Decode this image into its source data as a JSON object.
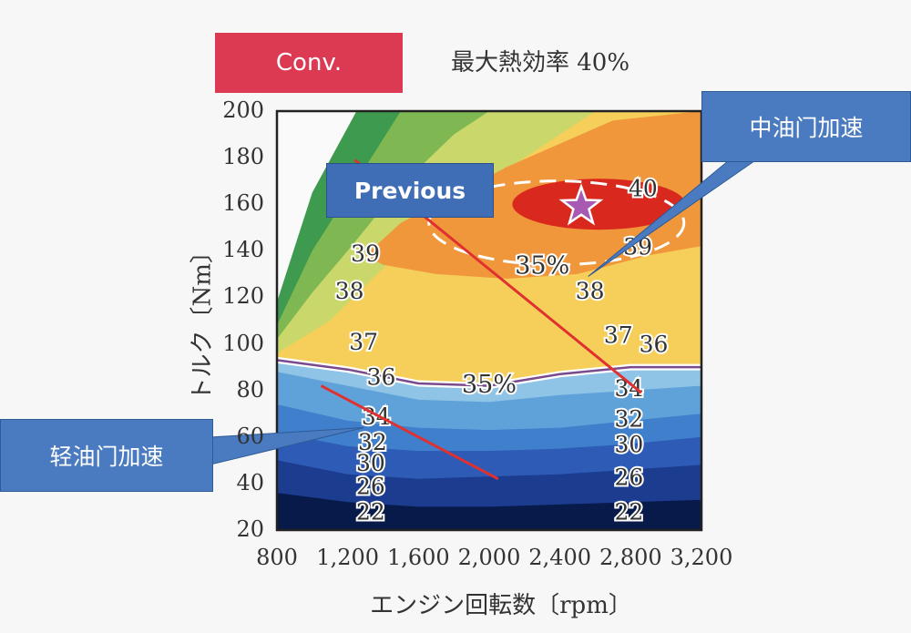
{
  "badge": "Conv.",
  "heading": "最大熱効率 40%",
  "previous_label": "Previous",
  "callouts": {
    "medium_throttle": "中油门加速",
    "light_throttle": "轻油门加速"
  },
  "chart_data": {
    "type": "heatmap",
    "subtype": "engine efficiency contour map",
    "xlabel": "エンジン回転数〔rpm〕",
    "ylabel": "トルク〔Nm〕",
    "x_ticks": [
      "800",
      "1,200",
      "1,600",
      "2,000",
      "2,400",
      "2,800",
      "3,200"
    ],
    "y_ticks": [
      "200",
      "180",
      "160",
      "140",
      "120",
      "100",
      "80",
      "60",
      "40",
      "20"
    ],
    "xlim": [
      800,
      3200
    ],
    "ylim": [
      20,
      200
    ],
    "max_efficiency_percent": 40,
    "contour_labels": [
      {
        "text": "40",
        "x": 2870,
        "y": 166
      },
      {
        "text": "39",
        "x": 1300,
        "y": 138
      },
      {
        "text": "39",
        "x": 2840,
        "y": 141
      },
      {
        "text": "35%",
        "x": 2300,
        "y": 133
      },
      {
        "text": "38",
        "x": 1210,
        "y": 122
      },
      {
        "text": "38",
        "x": 2570,
        "y": 122
      },
      {
        "text": "37",
        "x": 1290,
        "y": 100
      },
      {
        "text": "37",
        "x": 2730,
        "y": 103
      },
      {
        "text": "36",
        "x": 2930,
        "y": 99
      },
      {
        "text": "36",
        "x": 1390,
        "y": 85
      },
      {
        "text": "35%",
        "x": 2000,
        "y": 82
      },
      {
        "text": "34",
        "x": 2790,
        "y": 80
      },
      {
        "text": "34",
        "x": 1360,
        "y": 68
      },
      {
        "text": "32",
        "x": 2790,
        "y": 67
      },
      {
        "text": "32",
        "x": 1340,
        "y": 57
      },
      {
        "text": "30",
        "x": 2790,
        "y": 56
      },
      {
        "text": "30",
        "x": 1330,
        "y": 48
      },
      {
        "text": "26",
        "x": 1330,
        "y": 38
      },
      {
        "text": "26",
        "x": 2790,
        "y": 42
      },
      {
        "text": "22",
        "x": 1330,
        "y": 27
      },
      {
        "text": "22",
        "x": 2790,
        "y": 27
      }
    ],
    "boundary_35_percent_line": [
      [
        800,
        93
      ],
      [
        1200,
        89
      ],
      [
        1600,
        83
      ],
      [
        2000,
        82
      ],
      [
        2400,
        87
      ],
      [
        2800,
        90
      ],
      [
        3200,
        90
      ]
    ],
    "peak_marker": {
      "x": 2520,
      "y": 159,
      "symbol": "star"
    },
    "operating_lines": [
      {
        "name": "medium_throttle",
        "points": [
          [
            1240,
            179
          ],
          [
            2860,
            79
          ]
        ],
        "color": "#e03030"
      },
      {
        "name": "light_throttle",
        "points": [
          [
            1050,
            82
          ],
          [
            2050,
            42
          ]
        ],
        "color": "#e03030"
      }
    ],
    "colors": {
      "band_22": "#071a4a",
      "band_26": "#1b3c8f",
      "band_30": "#2d5bb5",
      "band_32": "#3f7fcc",
      "band_34": "#5fa2da",
      "band_35": "#8fc4e6",
      "band_36": "#3e9a4f",
      "band_37": "#7fb852",
      "band_38": "#c9d76b",
      "band_39": "#f5cf5a",
      "band_3935": "#f0973c",
      "band_40": "#d9291e"
    }
  }
}
